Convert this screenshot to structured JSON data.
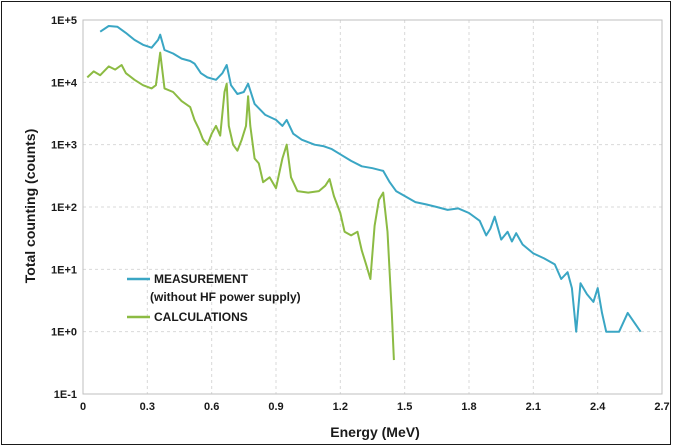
{
  "chart_data": {
    "type": "line",
    "title": "",
    "xlabel": "Energy (MeV)",
    "ylabel": "Total counting (counts)",
    "xlim": [
      0,
      2.7
    ],
    "ylim_log10": [
      -1,
      5
    ],
    "y_scale": "log",
    "grid": true,
    "legend_position": "lower-left",
    "x_ticks": [
      "0",
      "0.3",
      "0.6",
      "0.9",
      "1.2",
      "1.5",
      "1.8",
      "2.1",
      "2.4",
      "2.7"
    ],
    "y_ticks": [
      "1E-1",
      "1E+0",
      "1E+1",
      "1E+2",
      "1E+3",
      "1E+4",
      "1E+5"
    ],
    "series": [
      {
        "name": "MEASUREMENT",
        "name_line2": "(without HF power supply)",
        "color": "#3aa6c4",
        "points": [
          [
            0.08,
            65000
          ],
          [
            0.12,
            80000
          ],
          [
            0.16,
            78000
          ],
          [
            0.2,
            62000
          ],
          [
            0.24,
            48000
          ],
          [
            0.28,
            40000
          ],
          [
            0.32,
            36000
          ],
          [
            0.35,
            48000
          ],
          [
            0.36,
            58000
          ],
          [
            0.38,
            33000
          ],
          [
            0.42,
            29000
          ],
          [
            0.46,
            24000
          ],
          [
            0.5,
            22000
          ],
          [
            0.52,
            20000
          ],
          [
            0.55,
            14000
          ],
          [
            0.58,
            12000
          ],
          [
            0.62,
            11000
          ],
          [
            0.65,
            14000
          ],
          [
            0.67,
            19000
          ],
          [
            0.69,
            9000
          ],
          [
            0.72,
            6500
          ],
          [
            0.75,
            7000
          ],
          [
            0.77,
            9500
          ],
          [
            0.8,
            4500
          ],
          [
            0.85,
            3000
          ],
          [
            0.9,
            2500
          ],
          [
            0.93,
            2000
          ],
          [
            0.95,
            2500
          ],
          [
            0.98,
            1500
          ],
          [
            1.02,
            1200
          ],
          [
            1.08,
            1000
          ],
          [
            1.12,
            950
          ],
          [
            1.16,
            850
          ],
          [
            1.2,
            700
          ],
          [
            1.25,
            550
          ],
          [
            1.3,
            450
          ],
          [
            1.35,
            420
          ],
          [
            1.4,
            380
          ],
          [
            1.43,
            250
          ],
          [
            1.46,
            180
          ],
          [
            1.5,
            150
          ],
          [
            1.55,
            120
          ],
          [
            1.6,
            110
          ],
          [
            1.65,
            100
          ],
          [
            1.7,
            90
          ],
          [
            1.75,
            95
          ],
          [
            1.8,
            80
          ],
          [
            1.85,
            60
          ],
          [
            1.88,
            35
          ],
          [
            1.9,
            45
          ],
          [
            1.92,
            70
          ],
          [
            1.95,
            30
          ],
          [
            1.98,
            40
          ],
          [
            2.0,
            28
          ],
          [
            2.02,
            38
          ],
          [
            2.05,
            25
          ],
          [
            2.1,
            18
          ],
          [
            2.15,
            15
          ],
          [
            2.2,
            12
          ],
          [
            2.23,
            7
          ],
          [
            2.26,
            9
          ],
          [
            2.28,
            5
          ],
          [
            2.3,
            1
          ],
          [
            2.32,
            6
          ],
          [
            2.35,
            4
          ],
          [
            2.38,
            3
          ],
          [
            2.4,
            5
          ],
          [
            2.42,
            2
          ],
          [
            2.44,
            1
          ],
          [
            2.5,
            1
          ],
          [
            2.54,
            2
          ],
          [
            2.6,
            1
          ]
        ]
      },
      {
        "name": "CALCULATIONS",
        "color": "#8cbb43",
        "points": [
          [
            0.02,
            12000
          ],
          [
            0.05,
            15000
          ],
          [
            0.08,
            13000
          ],
          [
            0.12,
            18000
          ],
          [
            0.15,
            16000
          ],
          [
            0.18,
            19000
          ],
          [
            0.2,
            14000
          ],
          [
            0.24,
            11000
          ],
          [
            0.28,
            9000
          ],
          [
            0.32,
            8000
          ],
          [
            0.34,
            9000
          ],
          [
            0.36,
            30000
          ],
          [
            0.38,
            8000
          ],
          [
            0.42,
            7000
          ],
          [
            0.46,
            5000
          ],
          [
            0.5,
            4000
          ],
          [
            0.52,
            2500
          ],
          [
            0.54,
            1800
          ],
          [
            0.56,
            1200
          ],
          [
            0.58,
            1000
          ],
          [
            0.6,
            1500
          ],
          [
            0.62,
            2000
          ],
          [
            0.64,
            1400
          ],
          [
            0.66,
            7000
          ],
          [
            0.67,
            9500
          ],
          [
            0.68,
            2000
          ],
          [
            0.7,
            1000
          ],
          [
            0.72,
            800
          ],
          [
            0.74,
            1200
          ],
          [
            0.76,
            2000
          ],
          [
            0.77,
            6000
          ],
          [
            0.78,
            2000
          ],
          [
            0.8,
            600
          ],
          [
            0.82,
            500
          ],
          [
            0.84,
            250
          ],
          [
            0.87,
            300
          ],
          [
            0.9,
            200
          ],
          [
            0.93,
            600
          ],
          [
            0.95,
            1000
          ],
          [
            0.97,
            300
          ],
          [
            1.0,
            180
          ],
          [
            1.05,
            170
          ],
          [
            1.1,
            180
          ],
          [
            1.13,
            220
          ],
          [
            1.15,
            280
          ],
          [
            1.17,
            150
          ],
          [
            1.2,
            80
          ],
          [
            1.22,
            40
          ],
          [
            1.25,
            35
          ],
          [
            1.28,
            40
          ],
          [
            1.3,
            20
          ],
          [
            1.32,
            12
          ],
          [
            1.34,
            7
          ],
          [
            1.36,
            50
          ],
          [
            1.38,
            130
          ],
          [
            1.4,
            170
          ],
          [
            1.42,
            40
          ],
          [
            1.44,
            2
          ],
          [
            1.45,
            0.35
          ]
        ]
      }
    ]
  }
}
